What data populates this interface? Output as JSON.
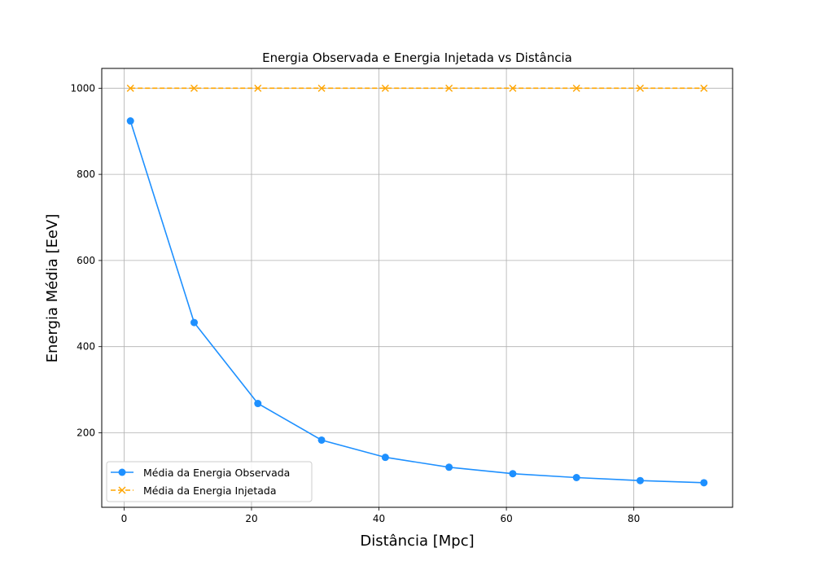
{
  "chart_data": {
    "type": "line",
    "title": "Energia Observada e Energia Injetada vs Distância",
    "xlabel": "Distância [Mpc]",
    "ylabel": "Energia Média [EeV]",
    "xlim": [
      -3.5,
      95.5
    ],
    "ylim": [
      27,
      1046
    ],
    "xticks": [
      0,
      20,
      40,
      60,
      80
    ],
    "yticks": [
      200,
      400,
      600,
      800,
      1000
    ],
    "grid": true,
    "legend_position": "lower-left",
    "x": [
      1,
      11,
      21,
      31,
      41,
      51,
      61,
      71,
      81,
      91
    ],
    "series": [
      {
        "name": "Média da Energia Observada",
        "color": "#1e90ff",
        "marker": "circle",
        "linestyle": "solid",
        "values": [
          924,
          456,
          268,
          183,
          143,
          120,
          105,
          96,
          89,
          84
        ]
      },
      {
        "name": "Média da Energia Injetada",
        "color": "#ffa500",
        "marker": "x",
        "linestyle": "dashed",
        "values": [
          1000,
          1000,
          1000,
          1000,
          1000,
          1000,
          1000,
          1000,
          1000,
          1000
        ]
      }
    ]
  }
}
